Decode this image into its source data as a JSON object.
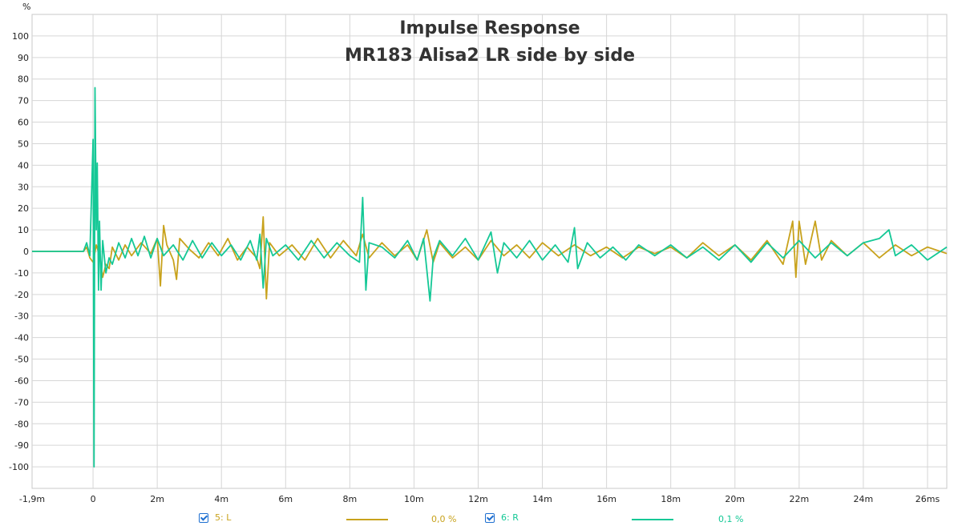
{
  "chart_data": {
    "type": "line",
    "title": "Impulse Response",
    "subtitle": "MR183 Alisa2 LR side by side",
    "ylabel": "%",
    "xlabel": "",
    "xlim": [
      -0.0019,
      0.0266
    ],
    "ylim": [
      -110,
      110
    ],
    "x_ticks": [
      -0.0019,
      0,
      0.002,
      0.004,
      0.006,
      0.008,
      0.01,
      0.012,
      0.014,
      0.016,
      0.018,
      0.02,
      0.022,
      0.024,
      0.026
    ],
    "x_tick_labels": [
      "-1,9m",
      "0",
      "2m",
      "4m",
      "6m",
      "8m",
      "10m",
      "12m",
      "14m",
      "16m",
      "18m",
      "20m",
      "22m",
      "24m",
      "26ms"
    ],
    "y_ticks": [
      100,
      90,
      80,
      70,
      60,
      50,
      40,
      30,
      20,
      10,
      0,
      -10,
      -20,
      -30,
      -40,
      -50,
      -60,
      -70,
      -80,
      -90,
      -100
    ],
    "y_tick_labels": [
      "100",
      "90",
      "80",
      "70",
      "60",
      "50",
      "40",
      "30",
      "20",
      "10",
      "0",
      "-10",
      "-20",
      "-30",
      "-40",
      "-50",
      "-60",
      "-70",
      "-80",
      "-90",
      "-100"
    ],
    "grid": true,
    "legend_position": "bottom",
    "series": [
      {
        "name": "5: L",
        "color": "#c8a21c",
        "value_label": "0,0 %",
        "points": [
          [
            -0.0019,
            0
          ],
          [
            -0.0003,
            0
          ],
          [
            -0.0002,
            2
          ],
          [
            -0.0001,
            -3
          ],
          [
            0,
            -5
          ],
          [
            0.0001,
            3
          ],
          [
            0.0002,
            -2
          ],
          [
            0.0003,
            -12
          ],
          [
            0.0004,
            -6
          ],
          [
            0.0005,
            -8
          ],
          [
            0.0006,
            2
          ],
          [
            0.0008,
            -4
          ],
          [
            0.001,
            3
          ],
          [
            0.0012,
            -2
          ],
          [
            0.0015,
            4
          ],
          [
            0.0018,
            -1
          ],
          [
            0.002,
            6
          ],
          [
            0.0021,
            -16
          ],
          [
            0.0022,
            12
          ],
          [
            0.0023,
            3
          ],
          [
            0.0025,
            -4
          ],
          [
            0.0026,
            -13
          ],
          [
            0.0027,
            6
          ],
          [
            0.003,
            1
          ],
          [
            0.0033,
            -3
          ],
          [
            0.0036,
            4
          ],
          [
            0.0039,
            -2
          ],
          [
            0.0042,
            6
          ],
          [
            0.0045,
            -4
          ],
          [
            0.0048,
            2
          ],
          [
            0.0051,
            -3
          ],
          [
            0.0052,
            -8
          ],
          [
            0.0053,
            16
          ],
          [
            0.0054,
            -22
          ],
          [
            0.0055,
            4
          ],
          [
            0.0058,
            -2
          ],
          [
            0.0062,
            3
          ],
          [
            0.0066,
            -4
          ],
          [
            0.007,
            6
          ],
          [
            0.0074,
            -3
          ],
          [
            0.0078,
            5
          ],
          [
            0.0082,
            -2
          ],
          [
            0.0084,
            8
          ],
          [
            0.0086,
            -3
          ],
          [
            0.009,
            4
          ],
          [
            0.0094,
            -2
          ],
          [
            0.0098,
            3
          ],
          [
            0.0101,
            -4
          ],
          [
            0.0104,
            10
          ],
          [
            0.0106,
            -5
          ],
          [
            0.0108,
            4
          ],
          [
            0.0112,
            -3
          ],
          [
            0.0116,
            2
          ],
          [
            0.012,
            -4
          ],
          [
            0.0124,
            5
          ],
          [
            0.0128,
            -2
          ],
          [
            0.0132,
            3
          ],
          [
            0.0136,
            -3
          ],
          [
            0.014,
            4
          ],
          [
            0.0145,
            -2
          ],
          [
            0.015,
            3
          ],
          [
            0.0155,
            -2
          ],
          [
            0.016,
            2
          ],
          [
            0.0165,
            -3
          ],
          [
            0.017,
            2
          ],
          [
            0.0175,
            -1
          ],
          [
            0.018,
            2
          ],
          [
            0.0185,
            -3
          ],
          [
            0.019,
            4
          ],
          [
            0.0195,
            -2
          ],
          [
            0.02,
            3
          ],
          [
            0.0205,
            -4
          ],
          [
            0.021,
            5
          ],
          [
            0.0215,
            -6
          ],
          [
            0.0218,
            14
          ],
          [
            0.0219,
            -12
          ],
          [
            0.022,
            14
          ],
          [
            0.0222,
            -6
          ],
          [
            0.0225,
            14
          ],
          [
            0.0227,
            -4
          ],
          [
            0.023,
            5
          ],
          [
            0.0235,
            -2
          ],
          [
            0.024,
            4
          ],
          [
            0.0245,
            -3
          ],
          [
            0.025,
            3
          ],
          [
            0.0255,
            -2
          ],
          [
            0.026,
            2
          ],
          [
            0.0266,
            -1
          ]
        ]
      },
      {
        "name": "6: R",
        "color": "#14c896",
        "value_label": "0,1 %",
        "points": [
          [
            -0.0019,
            0
          ],
          [
            -0.0003,
            0
          ],
          [
            -0.0002,
            4
          ],
          [
            -0.0001,
            -2
          ],
          [
            0,
            52
          ],
          [
            3e-05,
            -100
          ],
          [
            6e-05,
            76
          ],
          [
            0.0001,
            10
          ],
          [
            0.00013,
            41
          ],
          [
            0.00017,
            -18
          ],
          [
            0.0002,
            14
          ],
          [
            0.00025,
            -18
          ],
          [
            0.0003,
            5
          ],
          [
            0.0004,
            -10
          ],
          [
            0.0005,
            -3
          ],
          [
            0.0006,
            -6
          ],
          [
            0.0008,
            4
          ],
          [
            0.001,
            -3
          ],
          [
            0.0012,
            6
          ],
          [
            0.0014,
            -2
          ],
          [
            0.0016,
            7
          ],
          [
            0.0018,
            -3
          ],
          [
            0.002,
            6
          ],
          [
            0.0022,
            -2
          ],
          [
            0.0025,
            3
          ],
          [
            0.0028,
            -4
          ],
          [
            0.0031,
            5
          ],
          [
            0.0034,
            -3
          ],
          [
            0.0037,
            4
          ],
          [
            0.004,
            -2
          ],
          [
            0.0043,
            3
          ],
          [
            0.0046,
            -4
          ],
          [
            0.0049,
            5
          ],
          [
            0.0051,
            -4
          ],
          [
            0.0052,
            8
          ],
          [
            0.0053,
            -17
          ],
          [
            0.0054,
            6
          ],
          [
            0.0056,
            -2
          ],
          [
            0.006,
            3
          ],
          [
            0.0064,
            -4
          ],
          [
            0.0068,
            5
          ],
          [
            0.0072,
            -3
          ],
          [
            0.0076,
            4
          ],
          [
            0.008,
            -2
          ],
          [
            0.0083,
            -5
          ],
          [
            0.0084,
            25
          ],
          [
            0.0085,
            -18
          ],
          [
            0.0086,
            4
          ],
          [
            0.009,
            2
          ],
          [
            0.0094,
            -3
          ],
          [
            0.0098,
            5
          ],
          [
            0.0101,
            -4
          ],
          [
            0.0103,
            6
          ],
          [
            0.0105,
            -23
          ],
          [
            0.0106,
            -3
          ],
          [
            0.0108,
            5
          ],
          [
            0.0112,
            -2
          ],
          [
            0.0116,
            6
          ],
          [
            0.012,
            -4
          ],
          [
            0.0124,
            9
          ],
          [
            0.0126,
            -10
          ],
          [
            0.0128,
            4
          ],
          [
            0.0132,
            -3
          ],
          [
            0.0136,
            5
          ],
          [
            0.014,
            -4
          ],
          [
            0.0144,
            3
          ],
          [
            0.0148,
            -5
          ],
          [
            0.015,
            11
          ],
          [
            0.0151,
            -8
          ],
          [
            0.0154,
            4
          ],
          [
            0.0158,
            -3
          ],
          [
            0.0162,
            2
          ],
          [
            0.0166,
            -4
          ],
          [
            0.017,
            3
          ],
          [
            0.0175,
            -2
          ],
          [
            0.018,
            3
          ],
          [
            0.0185,
            -3
          ],
          [
            0.019,
            2
          ],
          [
            0.0195,
            -4
          ],
          [
            0.02,
            3
          ],
          [
            0.0205,
            -5
          ],
          [
            0.021,
            4
          ],
          [
            0.0215,
            -3
          ],
          [
            0.022,
            5
          ],
          [
            0.0225,
            -3
          ],
          [
            0.023,
            4
          ],
          [
            0.0235,
            -2
          ],
          [
            0.024,
            4
          ],
          [
            0.0245,
            6
          ],
          [
            0.0248,
            10
          ],
          [
            0.025,
            -2
          ],
          [
            0.0255,
            3
          ],
          [
            0.026,
            -4
          ],
          [
            0.0266,
            2
          ]
        ]
      }
    ]
  }
}
